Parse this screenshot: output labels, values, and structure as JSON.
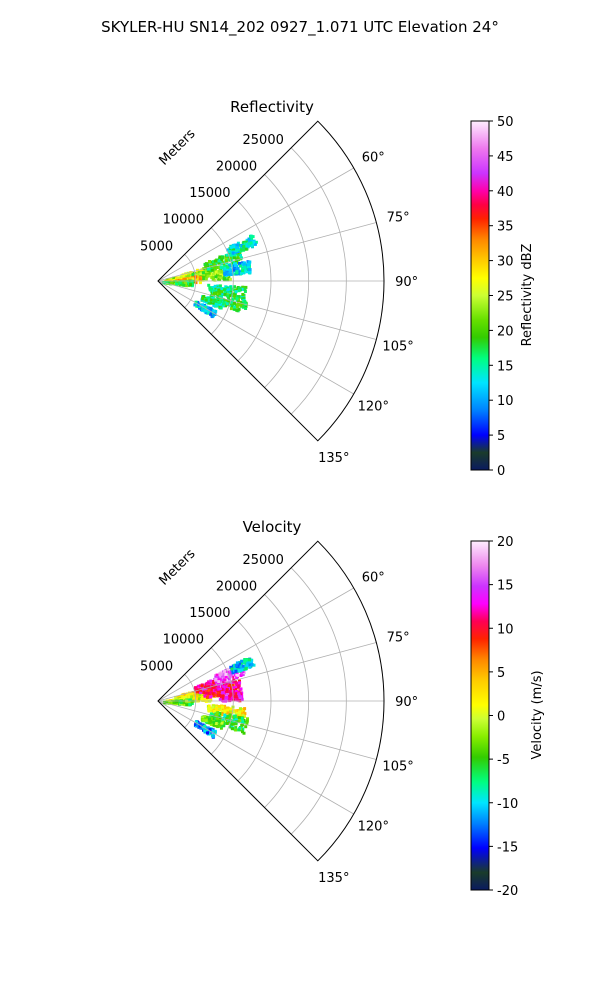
{
  "figure": {
    "title": "SKYLER-HU  SN14_202  0927_1.071 UTC Elevation 24°"
  },
  "chart_data": [
    {
      "type": "heatmap",
      "projection": "polar-sector",
      "title": "Reflectivity",
      "range_label": "Meters",
      "range_ticks": [
        "5000",
        "10000",
        "15000",
        "20000",
        "25000"
      ],
      "range_values": [
        5000,
        10000,
        15000,
        20000,
        25000
      ],
      "range_max": 30000,
      "azimuth_ticks": [
        "60°",
        "75°",
        "90°",
        "105°",
        "120°",
        "135°"
      ],
      "azimuth_values": [
        60,
        75,
        90,
        105,
        120,
        135
      ],
      "azimuth_range": [
        45,
        135
      ],
      "grid": true,
      "colorbar": {
        "label": "Reflectivity dBZ",
        "vmin": 0,
        "vmax": 50,
        "ticks": [
          "0",
          "5",
          "10",
          "15",
          "20",
          "25",
          "30",
          "35",
          "40",
          "45",
          "50"
        ],
        "tick_values": [
          0,
          5,
          10,
          15,
          20,
          25,
          30,
          35,
          40,
          45,
          50
        ],
        "stops": [
          [
            "#0a1a60",
            0
          ],
          [
            "#1a3c2a",
            0.05
          ],
          [
            "#0000ff",
            0.1
          ],
          [
            "#0080ff",
            0.17
          ],
          [
            "#00e5ff",
            0.25
          ],
          [
            "#00ff80",
            0.32
          ],
          [
            "#33cc00",
            0.38
          ],
          [
            "#66e000",
            0.43
          ],
          [
            "#ccff33",
            0.5
          ],
          [
            "#ffff00",
            0.55
          ],
          [
            "#ffcc00",
            0.6
          ],
          [
            "#ff8800",
            0.66
          ],
          [
            "#ff2200",
            0.72
          ],
          [
            "#ff0044",
            0.76
          ],
          [
            "#ff00aa",
            0.8
          ],
          [
            "#cc33ff",
            0.85
          ],
          [
            "#ee77ee",
            0.92
          ],
          [
            "#ffeeff",
            1
          ]
        ]
      },
      "echo_regions": [
        {
          "az": 78,
          "r": 4000,
          "value": 25,
          "daz": 6,
          "dr": 3000
        },
        {
          "az": 82,
          "r": 6000,
          "value": 22,
          "daz": 6,
          "dr": 3500
        },
        {
          "az": 86,
          "r": 3000,
          "value": 30,
          "daz": 5,
          "dr": 2500
        },
        {
          "az": 72,
          "r": 9000,
          "value": 18,
          "daz": 5,
          "dr": 2500
        },
        {
          "az": 66,
          "r": 12000,
          "value": 14,
          "daz": 3,
          "dr": 2000
        },
        {
          "az": 92,
          "r": 2500,
          "value": 20,
          "daz": 5,
          "dr": 2000
        },
        {
          "az": 97,
          "r": 9000,
          "value": 16,
          "daz": 4,
          "dr": 2500
        },
        {
          "az": 105,
          "r": 9500,
          "value": 18,
          "daz": 5,
          "dr": 2500
        },
        {
          "az": 110,
          "r": 7500,
          "value": 16,
          "daz": 3,
          "dr": 1500
        },
        {
          "az": 120,
          "r": 7000,
          "value": 12,
          "daz": 3,
          "dr": 1500
        },
        {
          "az": 80,
          "r": 10500,
          "value": 12,
          "daz": 4,
          "dr": 1800
        }
      ]
    },
    {
      "type": "heatmap",
      "projection": "polar-sector",
      "title": "Velocity",
      "range_label": "Meters",
      "range_ticks": [
        "5000",
        "10000",
        "15000",
        "20000",
        "25000"
      ],
      "range_values": [
        5000,
        10000,
        15000,
        20000,
        25000
      ],
      "range_max": 30000,
      "azimuth_ticks": [
        "60°",
        "75°",
        "90°",
        "105°",
        "120°",
        "135°"
      ],
      "azimuth_values": [
        60,
        75,
        90,
        105,
        120,
        135
      ],
      "azimuth_range": [
        45,
        135
      ],
      "grid": true,
      "colorbar": {
        "label": "Velocity (m/s)",
        "vmin": -20,
        "vmax": 20,
        "ticks": [
          "-20",
          "-15",
          "-10",
          "-5",
          "0",
          "5",
          "10",
          "15",
          "20"
        ],
        "tick_values": [
          -20,
          -15,
          -10,
          -5,
          0,
          5,
          10,
          15,
          20
        ],
        "stops": [
          [
            "#0a1a60",
            0
          ],
          [
            "#1a3c2a",
            0.05
          ],
          [
            "#0000ff",
            0.12
          ],
          [
            "#0080ff",
            0.19
          ],
          [
            "#00e5ff",
            0.25
          ],
          [
            "#00ff80",
            0.31
          ],
          [
            "#33cc00",
            0.38
          ],
          [
            "#88ee00",
            0.44
          ],
          [
            "#ccff33",
            0.49
          ],
          [
            "#ffff00",
            0.53
          ],
          [
            "#ffcc00",
            0.6
          ],
          [
            "#ff8800",
            0.66
          ],
          [
            "#ff2200",
            0.72
          ],
          [
            "#ff0055",
            0.77
          ],
          [
            "#ff00ff",
            0.82
          ],
          [
            "#cc33ff",
            0.87
          ],
          [
            "#ee88ee",
            0.93
          ],
          [
            "#ffeeff",
            1
          ]
        ]
      },
      "echo_regions": [
        {
          "az": 78,
          "r": 5000,
          "value": 3,
          "daz": 6,
          "dr": 3000
        },
        {
          "az": 84,
          "r": 4000,
          "value": 1,
          "daz": 5,
          "dr": 3000
        },
        {
          "az": 90,
          "r": 2500,
          "value": -4,
          "daz": 5,
          "dr": 2000
        },
        {
          "az": 72,
          "r": 8000,
          "value": 12,
          "daz": 5,
          "dr": 3000
        },
        {
          "az": 68,
          "r": 10000,
          "value": 16,
          "daz": 4,
          "dr": 2000
        },
        {
          "az": 80,
          "r": 8500,
          "value": 11,
          "daz": 4,
          "dr": 2500
        },
        {
          "az": 86,
          "r": 9500,
          "value": 13,
          "daz": 3,
          "dr": 1500
        },
        {
          "az": 97,
          "r": 9000,
          "value": 2,
          "daz": 4,
          "dr": 2500
        },
        {
          "az": 105,
          "r": 9500,
          "value": -6,
          "daz": 5,
          "dr": 2500
        },
        {
          "az": 110,
          "r": 7500,
          "value": -4,
          "daz": 3,
          "dr": 1500
        },
        {
          "az": 120,
          "r": 7000,
          "value": -12,
          "daz": 3,
          "dr": 1500
        },
        {
          "az": 66,
          "r": 12000,
          "value": -10,
          "daz": 3,
          "dr": 1500
        }
      ]
    }
  ]
}
